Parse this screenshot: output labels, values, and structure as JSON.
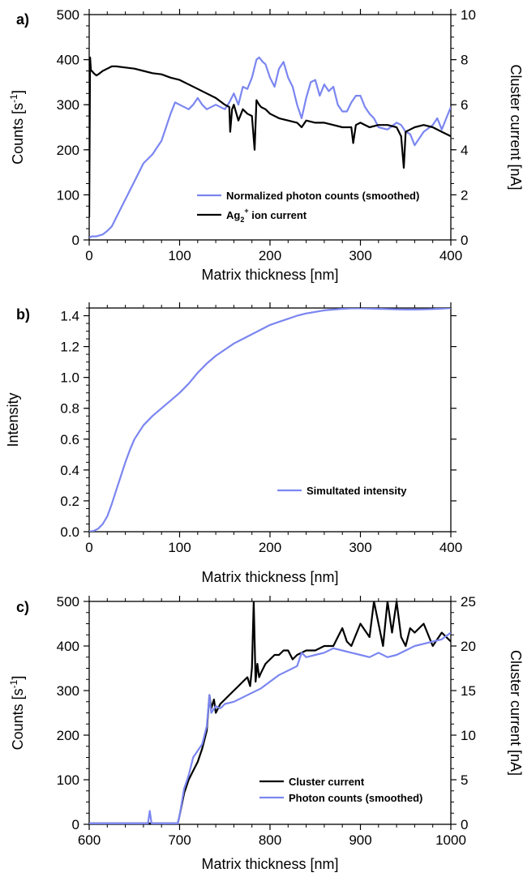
{
  "colors": {
    "photon": "#7b86f0",
    "black": "#000000"
  },
  "panels": [
    {
      "id": "a",
      "label": "a)"
    },
    {
      "id": "b",
      "label": "b)"
    },
    {
      "id": "c",
      "label": "c)"
    }
  ],
  "chart_data": [
    {
      "panel": "a",
      "type": "line",
      "xlabel": "Matrix thickness [nm]",
      "ylabel": "Counts [s",
      "ylabel_sup": "-1",
      "ylabel_end": "]",
      "y2label": "Cluster current [nA]",
      "xlim": [
        0,
        400
      ],
      "ylim": [
        0,
        500
      ],
      "y2lim": [
        0,
        10
      ],
      "xticks": [
        0,
        100,
        200,
        300,
        400
      ],
      "yticks": [
        0,
        100,
        200,
        300,
        400,
        500
      ],
      "y2ticks": [
        0,
        2,
        4,
        6,
        8,
        10
      ],
      "legend_position": "bottom-right",
      "series": [
        {
          "name": "Normalized photon counts (smoothed)",
          "color": "#7b86f0",
          "axis": "left",
          "x": [
            0,
            3,
            8,
            15,
            20,
            25,
            30,
            40,
            50,
            60,
            70,
            75,
            80,
            85,
            90,
            95,
            100,
            110,
            115,
            120,
            125,
            130,
            140,
            150,
            155,
            160,
            165,
            170,
            175,
            180,
            185,
            188,
            192,
            195,
            200,
            205,
            210,
            215,
            220,
            225,
            230,
            235,
            240,
            245,
            250,
            255,
            260,
            265,
            270,
            275,
            280,
            285,
            290,
            295,
            300,
            305,
            310,
            315,
            320,
            330,
            340,
            345,
            350,
            355,
            360,
            370,
            380,
            385,
            390,
            395,
            400
          ],
          "y": [
            5,
            8,
            8,
            12,
            20,
            30,
            50,
            90,
            130,
            170,
            190,
            205,
            220,
            250,
            280,
            305,
            300,
            290,
            300,
            315,
            300,
            290,
            300,
            290,
            305,
            325,
            300,
            340,
            335,
            360,
            400,
            405,
            395,
            390,
            360,
            340,
            380,
            395,
            360,
            340,
            300,
            270,
            315,
            350,
            355,
            320,
            345,
            330,
            340,
            300,
            285,
            285,
            305,
            320,
            320,
            295,
            280,
            270,
            250,
            245,
            260,
            255,
            240,
            235,
            210,
            240,
            255,
            270,
            245,
            270,
            295
          ]
        },
        {
          "name": "Ag2+ ion current",
          "color": "#000000",
          "axis": "right",
          "x": [
            0,
            1,
            2,
            3,
            5,
            8,
            10,
            15,
            20,
            25,
            30,
            40,
            50,
            60,
            70,
            80,
            90,
            100,
            110,
            120,
            130,
            140,
            150,
            155,
            156,
            158,
            160,
            165,
            170,
            175,
            180,
            183,
            185,
            188,
            190,
            195,
            200,
            210,
            220,
            230,
            235,
            240,
            250,
            260,
            270,
            280,
            290,
            292,
            295,
            300,
            310,
            320,
            330,
            340,
            345,
            348,
            350,
            355,
            360,
            370,
            380,
            390,
            400
          ],
          "y": [
            1.0,
            8.1,
            7.5,
            7.5,
            7.4,
            7.3,
            7.35,
            7.5,
            7.6,
            7.7,
            7.7,
            7.65,
            7.6,
            7.5,
            7.4,
            7.35,
            7.2,
            7.1,
            6.9,
            6.7,
            6.5,
            6.3,
            6.0,
            5.9,
            4.8,
            5.8,
            6.0,
            5.3,
            5.8,
            5.6,
            5.5,
            4.0,
            6.2,
            6.0,
            5.9,
            5.8,
            5.6,
            5.4,
            5.3,
            5.2,
            5.0,
            5.3,
            5.2,
            5.2,
            5.1,
            5.0,
            5.0,
            4.3,
            5.1,
            5.2,
            5.0,
            5.1,
            5.1,
            5.0,
            4.6,
            3.2,
            4.8,
            4.9,
            5.0,
            5.1,
            5.0,
            4.8,
            4.6
          ]
        }
      ]
    },
    {
      "panel": "b",
      "type": "line",
      "xlabel": "Matrix thickness [nm]",
      "ylabel": "Intensity",
      "xlim": [
        0,
        400
      ],
      "ylim": [
        0,
        1.45
      ],
      "xticks": [
        0,
        100,
        200,
        300,
        400
      ],
      "yticks": [
        0.0,
        0.2,
        0.4,
        0.6,
        0.8,
        1.0,
        1.2,
        1.4
      ],
      "ytick_labels": [
        "0.0",
        "0.2",
        "0.4",
        "0.6",
        "0.8",
        "1.0",
        "1.2",
        "1.4"
      ],
      "legend_position": "bottom-right",
      "series": [
        {
          "name": "Simultated intensity",
          "color": "#7b86f0",
          "x": [
            0,
            5,
            10,
            15,
            20,
            25,
            30,
            35,
            40,
            45,
            50,
            60,
            70,
            80,
            90,
            100,
            110,
            120,
            130,
            140,
            150,
            160,
            170,
            180,
            190,
            200,
            210,
            220,
            230,
            240,
            250,
            260,
            270,
            280,
            290,
            300,
            310,
            320,
            330,
            340,
            350,
            360,
            370,
            380,
            390,
            400
          ],
          "y": [
            0.0,
            0.005,
            0.02,
            0.05,
            0.1,
            0.18,
            0.27,
            0.36,
            0.45,
            0.53,
            0.6,
            0.69,
            0.75,
            0.8,
            0.85,
            0.9,
            0.96,
            1.03,
            1.09,
            1.14,
            1.18,
            1.22,
            1.25,
            1.28,
            1.31,
            1.34,
            1.36,
            1.38,
            1.4,
            1.415,
            1.425,
            1.435,
            1.44,
            1.445,
            1.448,
            1.448,
            1.447,
            1.445,
            1.443,
            1.441,
            1.44,
            1.44,
            1.441,
            1.443,
            1.446,
            1.45
          ]
        }
      ]
    },
    {
      "panel": "c",
      "type": "line",
      "xlabel": "Matrix thickness [nm]",
      "ylabel": "Counts [s",
      "ylabel_sup": "-1",
      "ylabel_end": "]",
      "y2label": "Cluster current [nA]",
      "xlim": [
        600,
        1000
      ],
      "ylim": [
        0,
        500
      ],
      "y2lim": [
        0,
        25
      ],
      "xticks": [
        600,
        700,
        800,
        900,
        1000
      ],
      "yticks": [
        0,
        100,
        200,
        300,
        400,
        500
      ],
      "y2ticks": [
        0,
        5,
        10,
        15,
        20,
        25
      ],
      "legend_position": "bottom-right",
      "series": [
        {
          "name": "Cluster current",
          "color": "#000000",
          "axis": "right",
          "x": [
            600,
            650,
            690,
            698,
            700,
            705,
            710,
            715,
            720,
            725,
            730,
            733,
            735,
            738,
            740,
            745,
            750,
            755,
            760,
            765,
            770,
            775,
            778,
            780,
            782,
            784,
            786,
            788,
            790,
            795,
            800,
            805,
            810,
            815,
            820,
            825,
            830,
            840,
            850,
            860,
            870,
            875,
            880,
            885,
            890,
            900,
            910,
            915,
            920,
            925,
            930,
            935,
            940,
            945,
            950,
            955,
            960,
            970,
            980,
            990,
            1000
          ],
          "y": [
            0.1,
            0.1,
            0.1,
            0.1,
            1.0,
            3.5,
            5.0,
            6.0,
            7.0,
            8.5,
            10.5,
            14.5,
            13.0,
            14.0,
            12.5,
            13.5,
            14.0,
            14.5,
            15.0,
            15.5,
            16.0,
            16.5,
            15.5,
            17.5,
            25.0,
            16.0,
            18.0,
            16.5,
            17.0,
            18.0,
            18.5,
            19.0,
            19.0,
            19.5,
            19.5,
            18.5,
            19.0,
            19.5,
            19.5,
            20.0,
            20.0,
            21.0,
            22.0,
            20.5,
            20.0,
            22.5,
            21.0,
            25.0,
            22.5,
            20.0,
            25.0,
            21.5,
            25.0,
            21.0,
            20.0,
            22.0,
            21.5,
            22.5,
            20.0,
            21.5,
            20.5
          ]
        },
        {
          "name": "Photon counts (smoothed)",
          "color": "#7b86f0",
          "axis": "left",
          "x": [
            600,
            650,
            665,
            667,
            669,
            690,
            698,
            700,
            705,
            710,
            715,
            720,
            725,
            730,
            733,
            735,
            740,
            745,
            750,
            760,
            770,
            780,
            790,
            800,
            810,
            820,
            830,
            835,
            840,
            850,
            860,
            870,
            880,
            890,
            900,
            910,
            920,
            930,
            940,
            950,
            960,
            970,
            980,
            990,
            1000
          ],
          "y": [
            2,
            2,
            2,
            30,
            2,
            2,
            2,
            20,
            80,
            110,
            150,
            165,
            180,
            220,
            290,
            250,
            265,
            260,
            270,
            275,
            285,
            295,
            305,
            320,
            335,
            345,
            355,
            385,
            375,
            380,
            385,
            395,
            390,
            385,
            380,
            375,
            385,
            375,
            380,
            390,
            400,
            405,
            410,
            415,
            430
          ]
        }
      ]
    }
  ]
}
